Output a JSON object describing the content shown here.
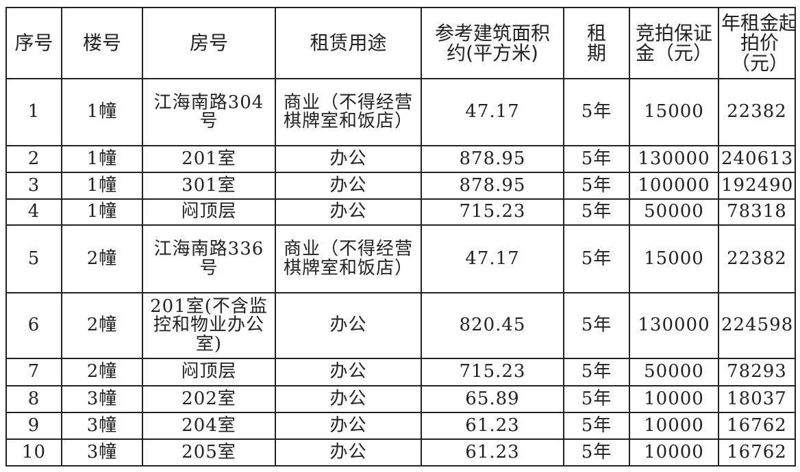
{
  "table": {
    "header": [
      "序号",
      "楼号",
      "房号",
      "租赁用途",
      "参考建筑面积约(平方米)",
      "租期",
      "竞拍保证金（元）",
      "年租金起拍价（元）"
    ],
    "rows": [
      [
        "1",
        "1幢",
        "江海南路304号",
        "商业（不得经营棋牌室和饭店）",
        "47.17",
        "5年",
        "15000",
        "22382"
      ],
      [
        "2",
        "1幢",
        "201室",
        "办公",
        "878.95",
        "5年",
        "130000",
        "240613"
      ],
      [
        "3",
        "1幢",
        "301室",
        "办公",
        "878.95",
        "5年",
        "100000",
        "192490"
      ],
      [
        "4",
        "1幢",
        "闷顶层",
        "办公",
        "715.23",
        "5年",
        "50000",
        "78318"
      ],
      [
        "5",
        "2幢",
        "江海南路336号",
        "商业（不得经营棋牌室和饭店）",
        "47.17",
        "5年",
        "15000",
        "22382"
      ],
      [
        "6",
        "2幢",
        "201室(不含监控和物业办公室)",
        "办公",
        "820.45",
        "5年",
        "130000",
        "224598"
      ],
      [
        "7",
        "2幢",
        "闷顶层",
        "办公",
        "715.23",
        "5年",
        "50000",
        "78293"
      ],
      [
        "8",
        "3幢",
        "202室",
        "办公",
        "65.89",
        "5年",
        "10000",
        "18037"
      ],
      [
        "9",
        "3幢",
        "204室",
        "办公",
        "61.23",
        "5年",
        "10000",
        "16762"
      ],
      [
        "10",
        "3幢",
        "205室",
        "办公",
        "61.23",
        "5年",
        "10000",
        "16762"
      ]
    ]
  }
}
